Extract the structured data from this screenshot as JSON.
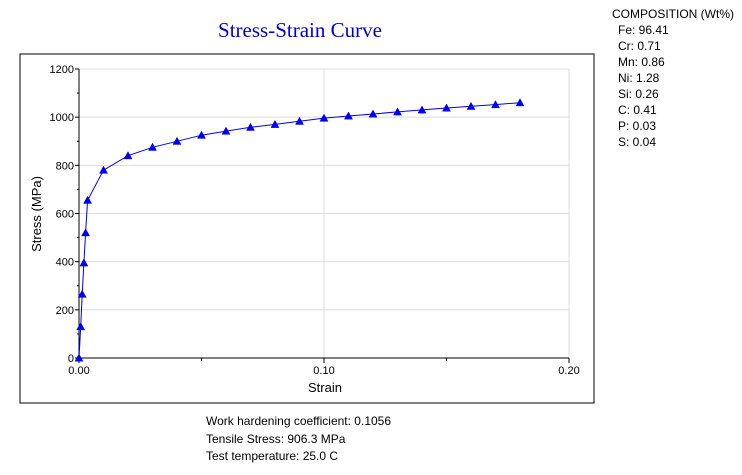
{
  "chart_data": {
    "type": "line",
    "title": "Stress-Strain Curve",
    "xlabel": "Strain",
    "ylabel": "Stress (MPa)",
    "xlim": [
      0,
      0.2
    ],
    "ylim": [
      0,
      1200
    ],
    "x_ticks": [
      "0.00",
      "0.10",
      "0.20"
    ],
    "y_ticks": [
      "0",
      "200",
      "400",
      "600",
      "800",
      "1000",
      "1200"
    ],
    "grid": true,
    "marker": "triangle",
    "series_color": "#0000ee",
    "points": [
      {
        "x": 0.0,
        "y": 0
      },
      {
        "x": 0.0007,
        "y": 130
      },
      {
        "x": 0.0013,
        "y": 265
      },
      {
        "x": 0.002,
        "y": 395
      },
      {
        "x": 0.0027,
        "y": 520
      },
      {
        "x": 0.0035,
        "y": 655
      },
      {
        "x": 0.01,
        "y": 780
      },
      {
        "x": 0.02,
        "y": 840
      },
      {
        "x": 0.03,
        "y": 875
      },
      {
        "x": 0.04,
        "y": 900
      },
      {
        "x": 0.05,
        "y": 925
      },
      {
        "x": 0.06,
        "y": 942
      },
      {
        "x": 0.07,
        "y": 958
      },
      {
        "x": 0.08,
        "y": 970
      },
      {
        "x": 0.09,
        "y": 983
      },
      {
        "x": 0.1,
        "y": 996
      },
      {
        "x": 0.11,
        "y": 1005
      },
      {
        "x": 0.12,
        "y": 1013
      },
      {
        "x": 0.13,
        "y": 1022
      },
      {
        "x": 0.14,
        "y": 1030
      },
      {
        "x": 0.15,
        "y": 1038
      },
      {
        "x": 0.16,
        "y": 1045
      },
      {
        "x": 0.17,
        "y": 1052
      },
      {
        "x": 0.18,
        "y": 1060
      }
    ]
  },
  "composition": {
    "heading": "COMPOSITION (Wt%)",
    "items": [
      "Fe: 96.41",
      "Cr: 0.71",
      "Mn: 0.86",
      "Ni: 1.28",
      "Si: 0.26",
      "C: 0.41",
      "P: 0.03",
      "S: 0.04"
    ]
  },
  "notes": {
    "work_hardening": "Work hardening coefficient: 0.1056",
    "tensile_stress": "Tensile Stress: 906.3 MPa",
    "test_temperature": "Test temperature: 25.0 C"
  }
}
